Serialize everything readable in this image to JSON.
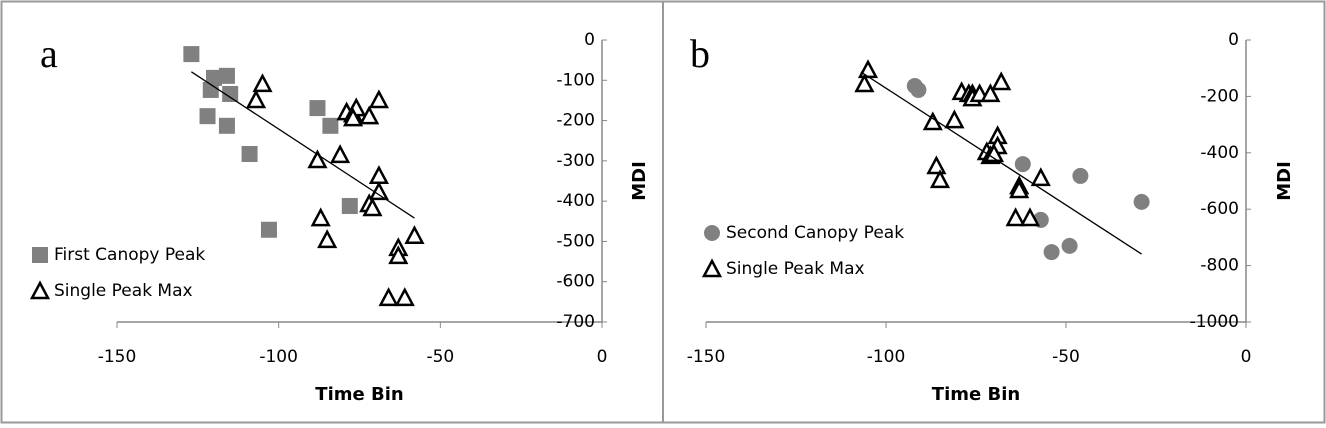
{
  "chart_data": [
    {
      "type": "scatter",
      "panel_label": "a",
      "xlabel": "Time Bin",
      "ylabel": "MDI",
      "xlim": [
        -150,
        0
      ],
      "ylim": [
        -700,
        0
      ],
      "xticks": [
        -150,
        -100,
        -50,
        0
      ],
      "yticks": [
        -700,
        -600,
        -500,
        -400,
        -300,
        -200,
        -100,
        0
      ],
      "legend": "lower left",
      "series": [
        {
          "name": "First Canopy Peak",
          "marker": "square",
          "color": "#808080",
          "x": [
            -127,
            -120,
            -116,
            -121,
            -115,
            -122,
            -116,
            -109,
            -88,
            -84,
            -78,
            -103
          ],
          "y": [
            -35,
            -94,
            -89,
            -124,
            -134,
            -189,
            -213,
            -283,
            -169,
            -213,
            -412,
            -471
          ]
        },
        {
          "name": "Single Peak Max",
          "marker": "triangle",
          "color": "#000000",
          "x": [
            -105,
            -107,
            -88,
            -81,
            -79,
            -77,
            -76,
            -77,
            -72,
            -69,
            -69,
            -69,
            -72,
            -71,
            -87,
            -85,
            -63,
            -63,
            -58,
            -66,
            -61
          ],
          "y": [
            -109,
            -149,
            -298,
            -285,
            -179,
            -184,
            -169,
            -194,
            -189,
            -149,
            -337,
            -377,
            -407,
            -417,
            -442,
            -496,
            -516,
            -536,
            -486,
            -640,
            -640
          ]
        }
      ],
      "trendline": {
        "color": "#000000",
        "x": [
          -127,
          -58
        ],
        "y": [
          -79,
          -442
        ]
      }
    },
    {
      "type": "scatter",
      "panel_label": "b",
      "xlabel": "Time Bin",
      "ylabel": "MDI",
      "xlim": [
        -150,
        0
      ],
      "ylim": [
        -1000,
        0
      ],
      "xticks": [
        -150,
        -100,
        -50,
        0
      ],
      "yticks": [
        -1000,
        -800,
        -600,
        -400,
        -200,
        0
      ],
      "legend": "lower left",
      "series": [
        {
          "name": "Second Canopy Peak",
          "marker": "circle",
          "color": "#808080",
          "x": [
            -92,
            -91,
            -62,
            -46,
            -57,
            -29,
            -54,
            -49
          ],
          "y": [
            -163,
            -177,
            -440,
            -482,
            -638,
            -574,
            -752,
            -730
          ]
        },
        {
          "name": "Single Peak Max",
          "marker": "triangle",
          "color": "#000000",
          "x": [
            -105,
            -106,
            -81,
            -87,
            -79,
            -77,
            -76,
            -76,
            -74,
            -71,
            -68,
            -69,
            -69,
            -72,
            -71,
            -70,
            -86,
            -85,
            -63,
            -63,
            -57,
            -64,
            -60
          ],
          "y": [
            -106,
            -156,
            -284,
            -291,
            -184,
            -191,
            -191,
            -206,
            -191,
            -191,
            -149,
            -340,
            -376,
            -397,
            -411,
            -404,
            -447,
            -496,
            -518,
            -532,
            -489,
            -631,
            -631
          ]
        }
      ],
      "trendline": {
        "color": "#000000",
        "x": [
          -107,
          -29
        ],
        "y": [
          -113,
          -759
        ]
      }
    }
  ]
}
